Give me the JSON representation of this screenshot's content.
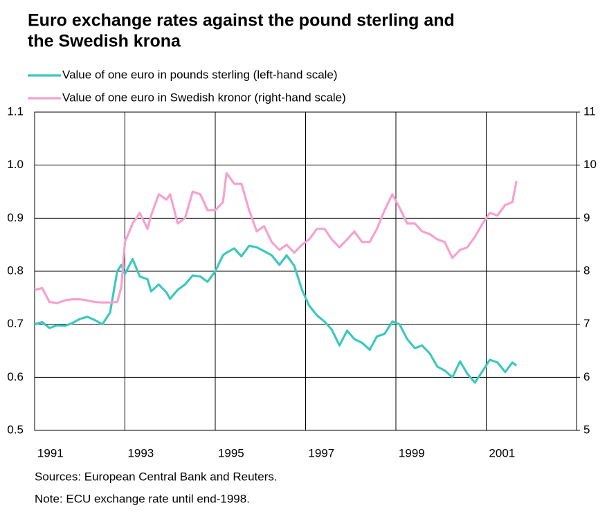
{
  "chart_data": {
    "type": "line",
    "title": [
      "Euro exchange rates against the pound sterling and",
      "the Swedish krona"
    ],
    "notes": [
      "Sources: European Central Bank and Reuters.",
      "Note: ECU exchange rate until end-1998."
    ],
    "x": [
      1991.0,
      1991.17,
      1991.33,
      1991.5,
      1991.67,
      1991.83,
      1992.0,
      1992.17,
      1992.33,
      1992.5,
      1992.67,
      1992.83,
      1992.92,
      1993.0,
      1993.17,
      1993.33,
      1993.5,
      1993.58,
      1993.75,
      1993.92,
      1994.0,
      1994.17,
      1994.33,
      1994.5,
      1994.67,
      1994.83,
      1995.0,
      1995.17,
      1995.25,
      1995.42,
      1995.58,
      1995.75,
      1995.92,
      1996.08,
      1996.25,
      1996.42,
      1996.58,
      1996.75,
      1996.92,
      1997.08,
      1997.25,
      1997.42,
      1997.58,
      1997.75,
      1997.92,
      1998.08,
      1998.25,
      1998.42,
      1998.58,
      1998.75,
      1998.92,
      1999.08,
      1999.25,
      1999.42,
      1999.58,
      1999.75,
      1999.92,
      2000.08,
      2000.25,
      2000.42,
      2000.58,
      2000.75,
      2000.92,
      2001.08,
      2001.25,
      2001.42,
      2001.58,
      2001.67
    ],
    "series": [
      {
        "name": "Value of one euro in pounds sterling (left-hand scale)",
        "color": "#3cc8c0",
        "axis": "y",
        "values": [
          0.7,
          0.704,
          0.693,
          0.698,
          0.697,
          0.702,
          0.71,
          0.714,
          0.708,
          0.7,
          0.722,
          0.8,
          0.812,
          0.795,
          0.823,
          0.79,
          0.785,
          0.762,
          0.775,
          0.76,
          0.748,
          0.765,
          0.775,
          0.792,
          0.79,
          0.78,
          0.8,
          0.83,
          0.835,
          0.843,
          0.828,
          0.848,
          0.845,
          0.838,
          0.83,
          0.812,
          0.83,
          0.81,
          0.765,
          0.735,
          0.717,
          0.705,
          0.69,
          0.66,
          0.688,
          0.672,
          0.665,
          0.652,
          0.677,
          0.682,
          0.705,
          0.7,
          0.672,
          0.655,
          0.66,
          0.645,
          0.62,
          0.613,
          0.6,
          0.63,
          0.607,
          0.59,
          0.612,
          0.633,
          0.628,
          0.61,
          0.628,
          0.622
        ]
      },
      {
        "name": "Value of one euro in Swedish kronor (right-hand scale)",
        "color": "#f7a1d0",
        "axis": "y2",
        "values": [
          7.65,
          7.68,
          7.42,
          7.4,
          7.45,
          7.47,
          7.47,
          7.45,
          7.42,
          7.41,
          7.41,
          7.42,
          7.7,
          8.55,
          8.9,
          9.1,
          8.8,
          9.05,
          9.45,
          9.35,
          9.45,
          8.9,
          9.0,
          9.5,
          9.45,
          9.15,
          9.15,
          9.3,
          9.85,
          9.65,
          9.65,
          9.15,
          8.75,
          8.85,
          8.55,
          8.4,
          8.5,
          8.35,
          8.5,
          8.6,
          8.8,
          8.8,
          8.6,
          8.45,
          8.6,
          8.75,
          8.55,
          8.55,
          8.8,
          9.15,
          9.45,
          9.2,
          8.9,
          8.9,
          8.75,
          8.7,
          8.6,
          8.55,
          8.25,
          8.4,
          8.45,
          8.65,
          8.9,
          9.1,
          9.05,
          9.25,
          9.3,
          9.7
        ]
      }
    ],
    "xlim": [
      1991,
      2003
    ],
    "xticks": [
      1991,
      1993,
      1995,
      1997,
      1999,
      2001
    ],
    "ylim": [
      0.5,
      1.1
    ],
    "yticks": [
      0.5,
      0.6,
      0.7,
      0.8,
      0.9,
      {
        "value": 1.0,
        "label": "1.0"
      },
      1.1
    ],
    "y2lim": [
      5,
      11
    ],
    "y2ticks": [
      5,
      6,
      7,
      8,
      9,
      10,
      11
    ],
    "grid": true
  }
}
